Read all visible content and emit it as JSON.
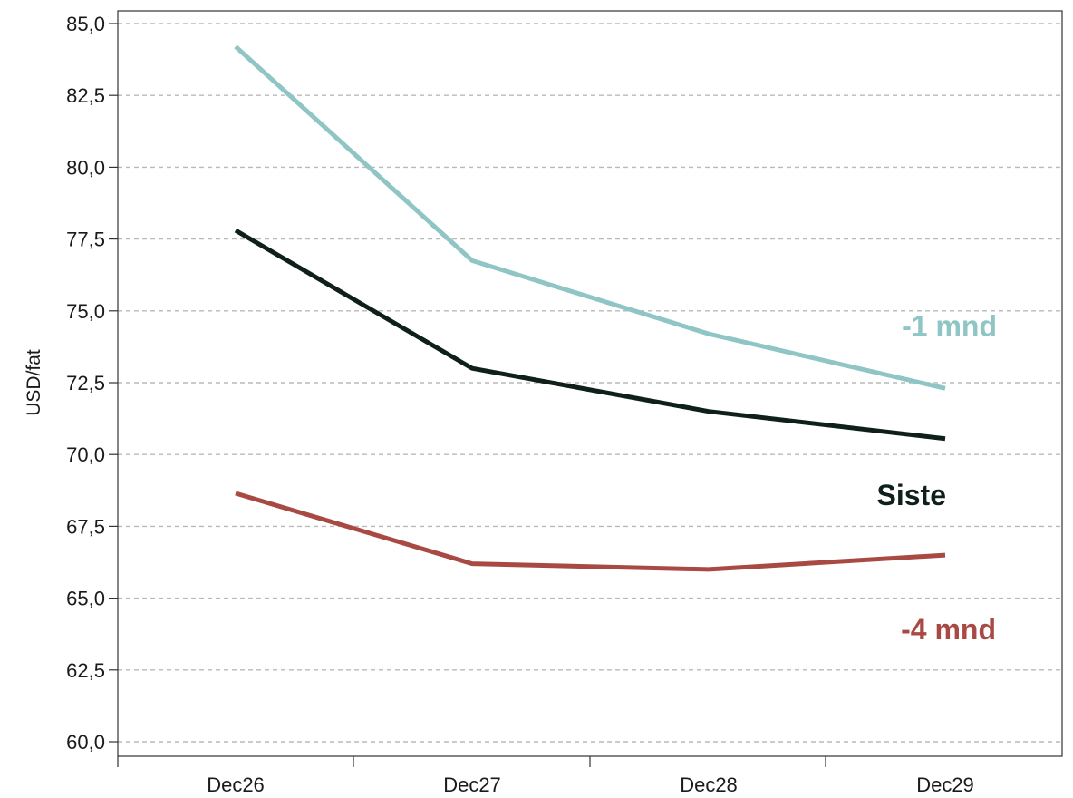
{
  "chart_data": {
    "type": "line",
    "title": "",
    "ylabel": "USD/fat",
    "xlabel": "",
    "categories": [
      "Dec26",
      "Dec27",
      "Dec28",
      "Dec29"
    ],
    "ylim": [
      60,
      85
    ],
    "yticks": [
      "60,0",
      "62,5",
      "65,0",
      "67,5",
      "70,0",
      "72,5",
      "75,0",
      "77,5",
      "80,0",
      "82,5",
      "85,0"
    ],
    "grid": true,
    "series": [
      {
        "name": "-1 mnd",
        "color": "#8fc6c5",
        "values": [
          84.2,
          76.75,
          74.2,
          72.3
        ]
      },
      {
        "name": "Siste",
        "color": "#0f1f1c",
        "values": [
          77.8,
          73.0,
          71.5,
          70.55
        ]
      },
      {
        "name": "-4 mnd",
        "color": "#a84a43",
        "values": [
          68.65,
          66.2,
          66.0,
          66.5
        ]
      }
    ]
  }
}
